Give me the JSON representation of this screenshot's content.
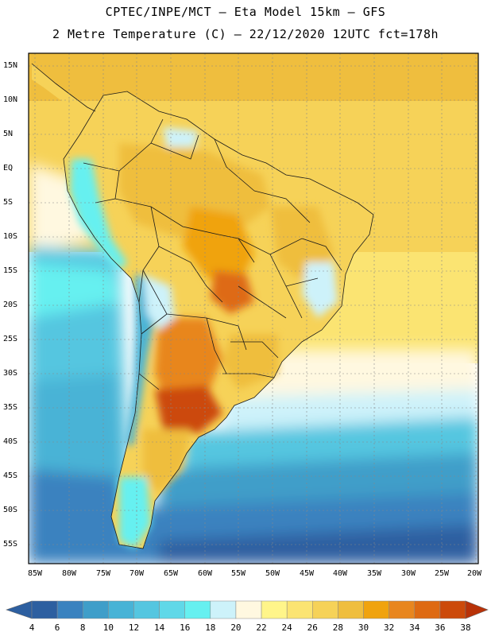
{
  "header": {
    "title_line1": "CPTEC/INPE/MCT –  Eta Model 15km – GFS",
    "title_line2": "2 Metre Temperature (C) – 22/12/2020 12UTC fct=178h"
  },
  "map": {
    "lat_labels": [
      "15N",
      "10N",
      "5N",
      "EQ",
      "5S",
      "10S",
      "15S",
      "20S",
      "25S",
      "30S",
      "35S",
      "40S",
      "45S",
      "50S",
      "55S"
    ],
    "lon_labels": [
      "85W",
      "80W",
      "75W",
      "70W",
      "65W",
      "60W",
      "55W",
      "50W",
      "45W",
      "40W",
      "35W",
      "30W",
      "25W",
      "20W"
    ],
    "colors": {
      "c4": "#2d5fa0",
      "c6": "#3a82bf",
      "c8": "#3f9ec9",
      "c10": "#48b3d6",
      "c12": "#55c6e0",
      "c14": "#60d8e8",
      "c16": "#66f0f0",
      "c18": "#cdf2fa",
      "c20": "#fff8e0",
      "c22": "#fff58a",
      "c24": "#fbe472",
      "c26": "#f6d258",
      "c28": "#efbe3e",
      "c30": "#f0a30e",
      "c32": "#e8861e",
      "c34": "#de6a12",
      "c36": "#cc4a0a",
      "c38": "#b83208"
    }
  },
  "colorbar": {
    "labels": [
      "4",
      "6",
      "8",
      "10",
      "12",
      "14",
      "16",
      "18",
      "20",
      "22",
      "24",
      "26",
      "28",
      "30",
      "32",
      "34",
      "36",
      "38"
    ]
  }
}
